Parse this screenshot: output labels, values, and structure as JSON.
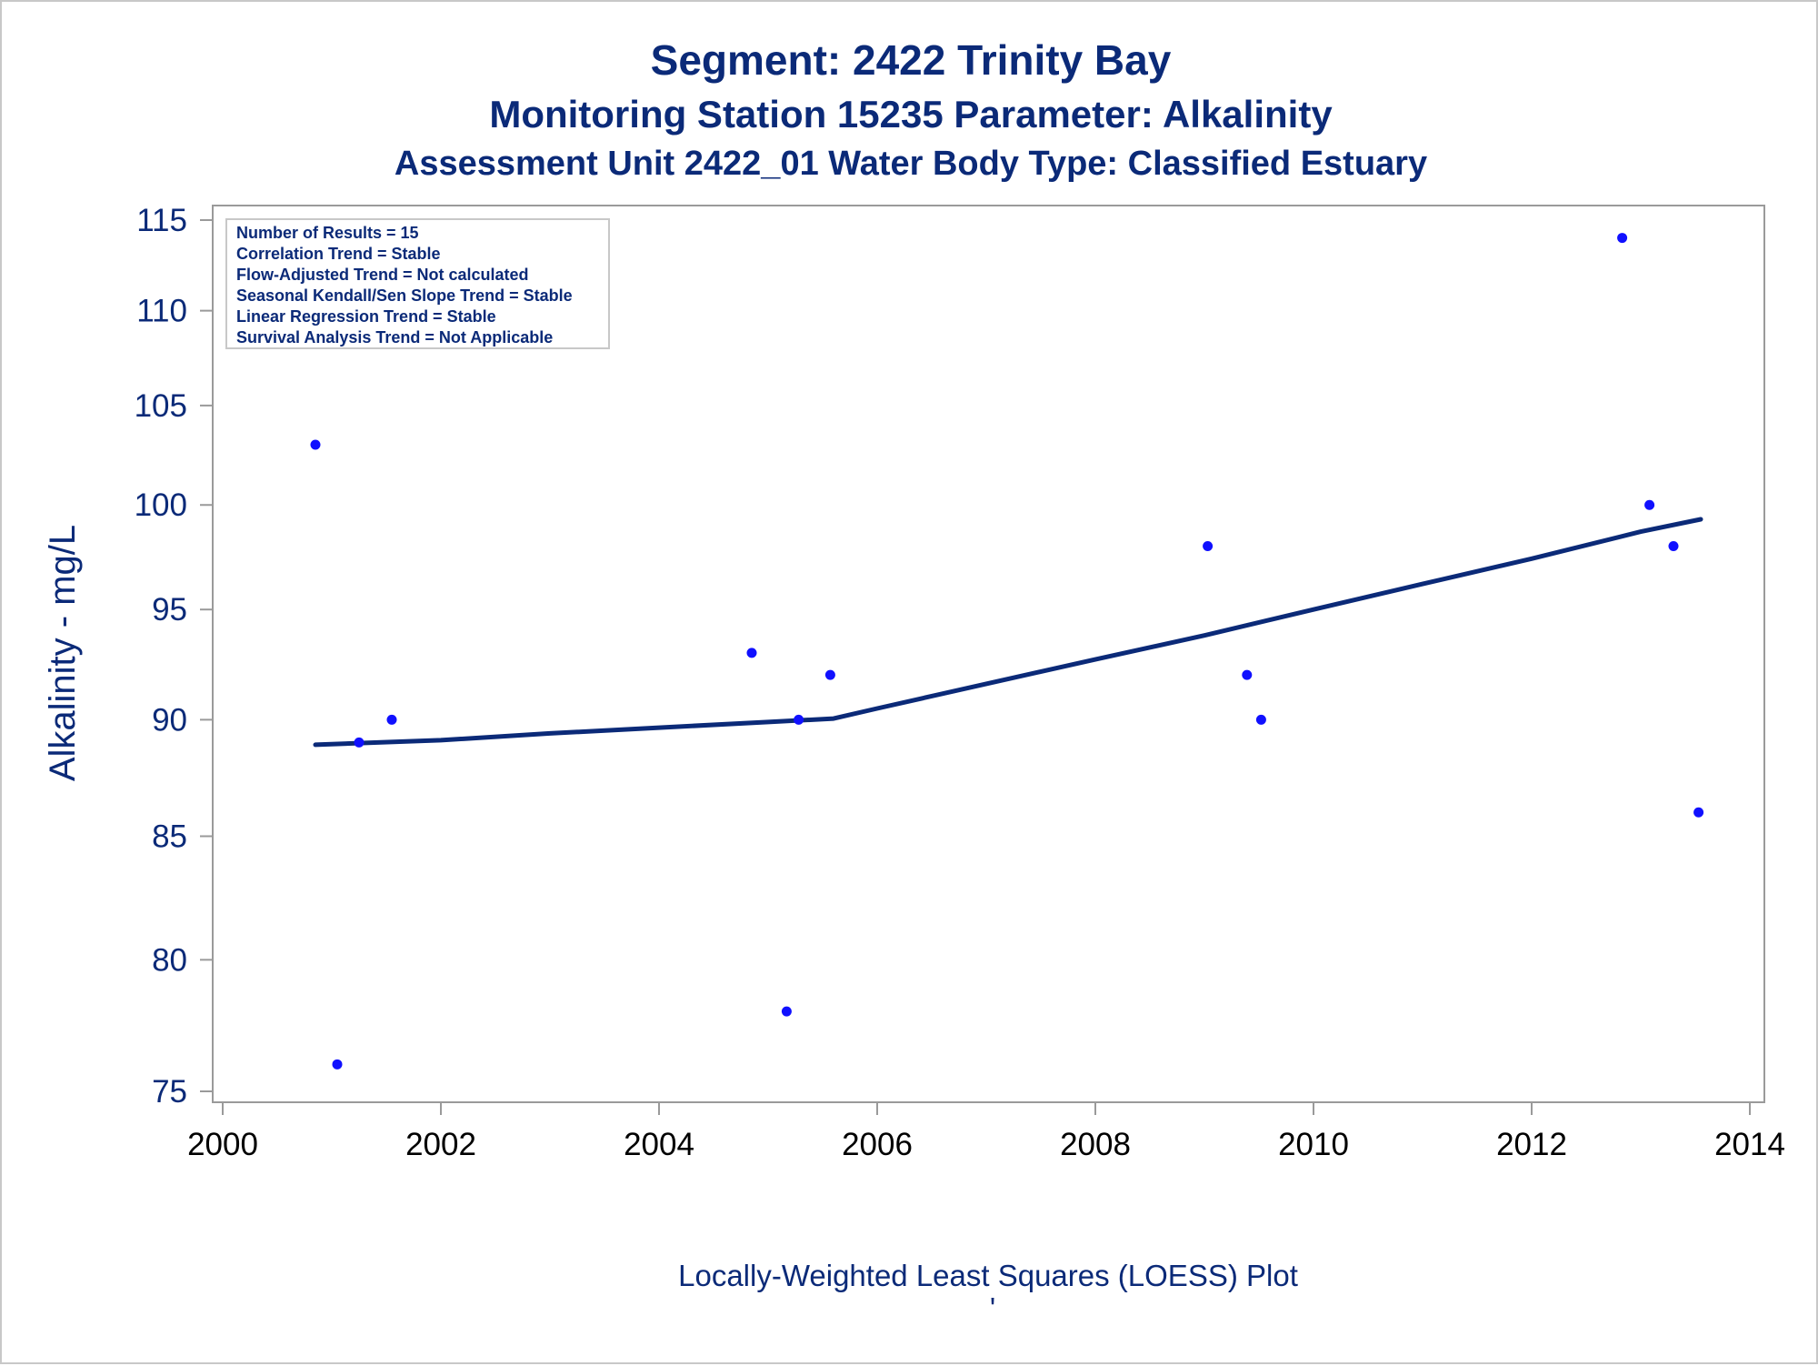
{
  "titles": {
    "line1": "Segment: 2422  Trinity Bay",
    "line2": "Monitoring Station 15235 Parameter: Alkalinity",
    "line3": "Assessment Unit 2422_01   Water Body Type: Classified Estuary"
  },
  "footnote": "Locally-Weighted Least Squares (LOESS) Plot",
  "footnote_mark": "'",
  "inset": {
    "lines": [
      "Number of Results = 15",
      "Correlation Trend = Stable",
      "Flow-Adjusted Trend = Not calculated",
      "Seasonal Kendall/Sen Slope Trend = Stable",
      "Linear Regression Trend = Stable",
      "Survival Analysis Trend = Not Applicable"
    ]
  },
  "colors": {
    "text": "#0b2a78",
    "points": "#1010ff",
    "loess": "#0b2a78",
    "axis": "#9a9a9a"
  },
  "chart_data": {
    "type": "scatter",
    "ylabel": "Alkalinity - mg/L",
    "xlabel": "",
    "xlim": [
      2000,
      2014
    ],
    "ylim": [
      75,
      115
    ],
    "y_scale": "log",
    "x_ticks": [
      2000,
      2002,
      2004,
      2006,
      2008,
      2010,
      2012,
      2014
    ],
    "y_ticks": [
      75,
      80,
      85,
      90,
      95,
      100,
      105,
      110,
      115
    ],
    "grid": false,
    "series": [
      {
        "kind": "points",
        "x": [
          2000.85,
          2001.05,
          2001.25,
          2001.55,
          2004.85,
          2005.17,
          2005.28,
          2005.57,
          2009.03,
          2009.39,
          2009.52,
          2012.83,
          2013.08,
          2013.3,
          2013.53
        ],
        "y": [
          103,
          76,
          89,
          90,
          93,
          78,
          90,
          92,
          98,
          92,
          90,
          114,
          100,
          98,
          86
        ]
      },
      {
        "kind": "loess",
        "x": [
          2000.85,
          2002,
          2003,
          2004,
          2005,
          2005.6,
          2006,
          2007,
          2008,
          2009,
          2010,
          2011,
          2012,
          2013,
          2013.55
        ],
        "y": [
          88.9,
          89.1,
          89.4,
          89.65,
          89.9,
          90.05,
          90.5,
          91.6,
          92.7,
          93.8,
          95.0,
          96.2,
          97.4,
          98.7,
          99.3
        ]
      }
    ]
  }
}
